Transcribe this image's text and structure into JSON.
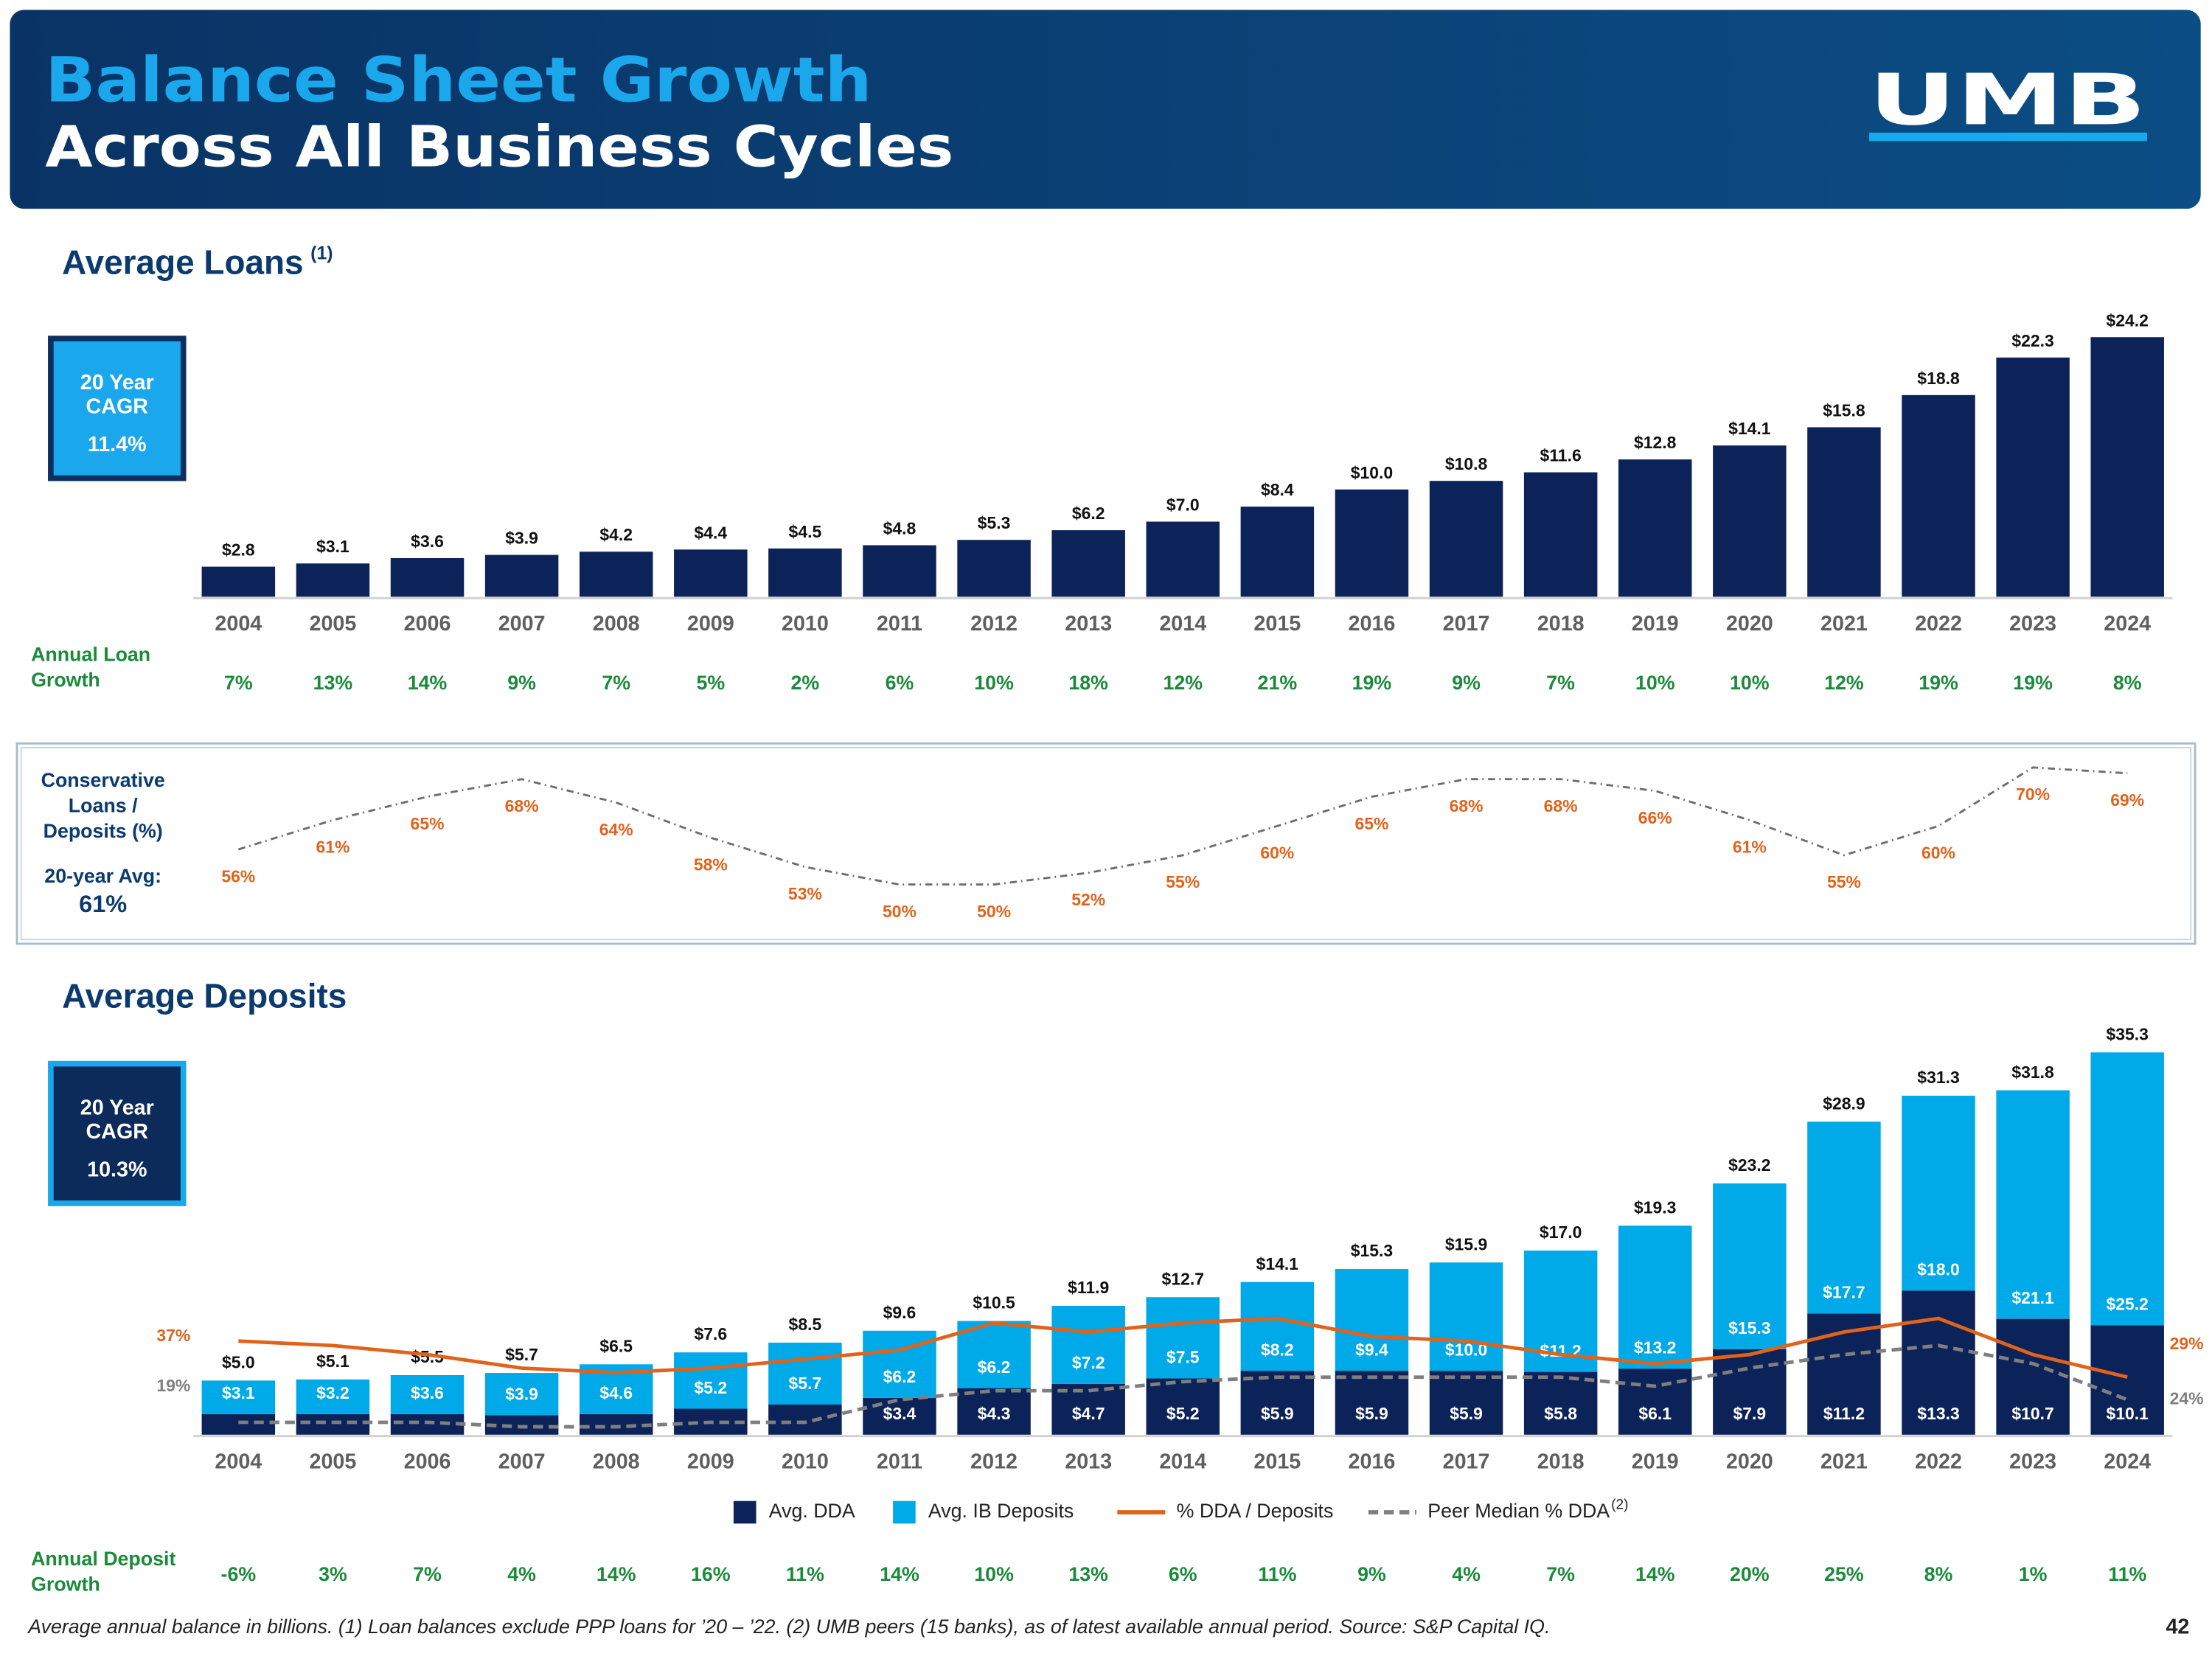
{
  "header": {
    "title": "Balance Sheet Growth",
    "subtitle": "Across All Business Cycles",
    "logo": "UMB"
  },
  "chart_data": [
    {
      "type": "bar",
      "title": "Average Loans",
      "title_note": "(1)",
      "cagr": {
        "lines": [
          "20 Year",
          "CAGR"
        ],
        "value": "11.4%"
      },
      "categories": [
        "2004",
        "2005",
        "2006",
        "2007",
        "2008",
        "2009",
        "2010",
        "2011",
        "2012",
        "2013",
        "2014",
        "2015",
        "2016",
        "2017",
        "2018",
        "2019",
        "2020",
        "2021",
        "2022",
        "2023",
        "2024"
      ],
      "values": [
        2.8,
        3.1,
        3.6,
        3.9,
        4.2,
        4.4,
        4.5,
        4.8,
        5.3,
        6.2,
        7.0,
        8.4,
        10.0,
        10.8,
        11.6,
        12.8,
        14.1,
        15.8,
        18.8,
        22.3,
        24.2
      ],
      "value_labels": [
        "$2.8",
        "$3.1",
        "$3.6",
        "$3.9",
        "$4.2",
        "$4.4",
        "$4.5",
        "$4.8",
        "$5.3",
        "$6.2",
        "$7.0",
        "$8.4",
        "$10.0",
        "$10.8",
        "$11.6",
        "$12.8",
        "$14.1",
        "$15.8",
        "$18.8",
        "$22.3",
        "$24.2"
      ],
      "color": "#0c2359",
      "growth": {
        "label_lines": [
          "Annual Loan",
          "Growth"
        ],
        "labels": [
          "7%",
          "13%",
          "14%",
          "9%",
          "7%",
          "5%",
          "2%",
          "6%",
          "10%",
          "18%",
          "12%",
          "21%",
          "19%",
          "9%",
          "7%",
          "10%",
          "10%",
          "12%",
          "19%",
          "19%",
          "8%"
        ]
      }
    },
    {
      "type": "line",
      "title_lines": [
        "Conservative",
        "Loans /",
        "Deposits (%)"
      ],
      "avg_label": "20-year Avg:",
      "avg_value": "61%",
      "categories": [
        "2004",
        "2005",
        "2006",
        "2007",
        "2008",
        "2009",
        "2010",
        "2011",
        "2012",
        "2013",
        "2014",
        "2015",
        "2016",
        "2017",
        "2018",
        "2019",
        "2020",
        "2021",
        "2022",
        "2023",
        "2024"
      ],
      "values": [
        56,
        61,
        65,
        68,
        64,
        58,
        53,
        50,
        50,
        52,
        55,
        60,
        65,
        68,
        68,
        66,
        61,
        55,
        60,
        70,
        69
      ],
      "value_labels": [
        "56%",
        "61%",
        "65%",
        "68%",
        "64%",
        "58%",
        "53%",
        "50%",
        "50%",
        "52%",
        "55%",
        "60%",
        "65%",
        "68%",
        "68%",
        "66%",
        "61%",
        "55%",
        "60%",
        "70%",
        "69%"
      ],
      "color": "#6d6d6d",
      "label_color": "#e0631c"
    },
    {
      "type": "bar",
      "stacked": true,
      "title": "Average Deposits",
      "cagr": {
        "lines": [
          "20 Year",
          "CAGR"
        ],
        "value": "10.3%"
      },
      "categories": [
        "2004",
        "2005",
        "2006",
        "2007",
        "2008",
        "2009",
        "2010",
        "2011",
        "2012",
        "2013",
        "2014",
        "2015",
        "2016",
        "2017",
        "2018",
        "2019",
        "2020",
        "2021",
        "2022",
        "2023",
        "2024"
      ],
      "series": [
        {
          "name": "Avg. DDA",
          "kind": "bar",
          "color": "#0c2359",
          "values": [
            1.9,
            1.9,
            1.9,
            1.8,
            1.9,
            2.4,
            2.8,
            3.4,
            4.3,
            4.7,
            5.2,
            5.9,
            5.9,
            5.9,
            5.8,
            6.1,
            7.9,
            11.2,
            13.3,
            10.7,
            10.1
          ],
          "value_labels": [
            null,
            null,
            null,
            null,
            null,
            null,
            null,
            "$3.4",
            "$4.3",
            "$4.7",
            "$5.2",
            "$5.9",
            "$5.9",
            "$5.9",
            "$5.8",
            "$6.1",
            "$7.9",
            "$11.2",
            "$13.3",
            "$10.7",
            "$10.1"
          ]
        },
        {
          "name": "Avg. IB Deposits",
          "kind": "bar",
          "color": "#00a9e8",
          "values": [
            3.1,
            3.2,
            3.6,
            3.9,
            4.6,
            5.2,
            5.7,
            6.2,
            6.2,
            7.2,
            7.5,
            8.2,
            9.4,
            10.0,
            11.2,
            13.2,
            15.3,
            17.7,
            18.0,
            21.1,
            25.2
          ],
          "value_labels": [
            "$3.1",
            "$3.2",
            "$3.6",
            "$3.9",
            "$4.6",
            "$5.2",
            "$5.7",
            "$6.2",
            "$6.2",
            "$7.2",
            "$7.5",
            "$8.2",
            "$9.4",
            "$10.0",
            "$11.2",
            "$13.2",
            "$15.3",
            "$17.7",
            "$18.0",
            "$21.1",
            "$25.2"
          ]
        },
        {
          "name": "% DDA / Deposits",
          "kind": "line",
          "axis": "y2",
          "color": "#e0631c",
          "values": [
            37,
            36,
            34,
            31,
            30,
            31,
            33,
            35,
            41,
            39,
            41,
            42,
            38,
            37,
            34,
            32,
            34,
            39,
            42,
            34,
            29
          ],
          "value_labels": [
            "37%",
            null,
            null,
            null,
            null,
            null,
            null,
            null,
            null,
            null,
            null,
            null,
            null,
            null,
            null,
            null,
            null,
            null,
            null,
            null,
            "29%"
          ]
        },
        {
          "name": "Peer Median % DDA",
          "name_note": "(2)",
          "kind": "line",
          "axis": "y2",
          "dashed": true,
          "color": "#7f7f7f",
          "values": [
            19,
            19,
            19,
            18,
            18,
            19,
            19,
            24,
            26,
            26,
            28,
            29,
            29,
            29,
            29,
            27,
            31,
            34,
            36,
            32,
            24
          ],
          "value_labels": [
            "19%",
            null,
            null,
            null,
            null,
            null,
            null,
            null,
            null,
            null,
            null,
            null,
            null,
            null,
            null,
            null,
            null,
            null,
            null,
            null,
            "24%"
          ]
        }
      ],
      "totals": {
        "values": [
          5.0,
          5.1,
          5.5,
          5.7,
          6.5,
          7.6,
          8.5,
          9.6,
          10.5,
          11.9,
          12.7,
          14.1,
          15.3,
          15.9,
          17.0,
          19.3,
          23.2,
          28.9,
          31.3,
          31.8,
          35.3
        ],
        "value_labels": [
          "$5.0",
          "$5.1",
          "$5.5",
          "$5.7",
          "$6.5",
          "$7.6",
          "$8.5",
          "$9.6",
          "$10.5",
          "$11.9",
          "$12.7",
          "$14.1",
          "$15.3",
          "$15.9",
          "$17.0",
          "$19.3",
          "$23.2",
          "$28.9",
          "$31.3",
          "$31.8",
          "$35.3"
        ]
      },
      "growth": {
        "label_lines": [
          "Annual Deposit",
          "Growth"
        ],
        "labels": [
          "-6%",
          "3%",
          "7%",
          "4%",
          "14%",
          "16%",
          "11%",
          "14%",
          "10%",
          "13%",
          "6%",
          "11%",
          "9%",
          "4%",
          "7%",
          "14%",
          "20%",
          "25%",
          "8%",
          "1%",
          "11%"
        ]
      }
    }
  ],
  "footer": {
    "note": "Average annual balance in billions. (1) Loan balances exclude PPP loans for ’20 – ’22. (2) UMB peers (15 banks), as of latest available annual period. Source: S&P Capital IQ.",
    "page": "42"
  }
}
